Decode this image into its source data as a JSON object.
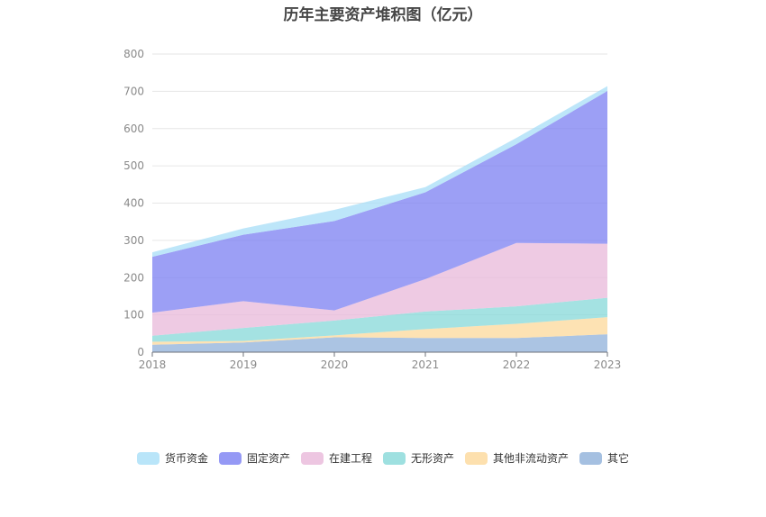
{
  "chart_data": {
    "type": "area",
    "stacked": true,
    "title": "历年主要资产堆积图（亿元）",
    "x": [
      "2018",
      "2019",
      "2020",
      "2021",
      "2022",
      "2023"
    ],
    "ylim": [
      0,
      800
    ],
    "yticks": [
      "0",
      "100",
      "200",
      "300",
      "400",
      "500",
      "600",
      "700",
      "800"
    ],
    "grid": true,
    "legend_position": "bottom",
    "series": [
      {
        "name": "其它",
        "color": "#8fb0d9",
        "values": [
          20,
          26,
          40,
          38,
          38,
          48
        ]
      },
      {
        "name": "其他非流动资产",
        "color": "#fcd89a",
        "values": [
          8,
          4,
          5,
          24,
          38,
          46
        ]
      },
      {
        "name": "无形资产",
        "color": "#86d8d8",
        "values": [
          16,
          35,
          40,
          47,
          47,
          52
        ]
      },
      {
        "name": "在建工程",
        "color": "#e8b8da",
        "values": [
          62,
          72,
          27,
          87,
          170,
          145
        ]
      },
      {
        "name": "固定资产",
        "color": "#7b7ff2",
        "values": [
          150,
          178,
          240,
          233,
          265,
          410
        ]
      },
      {
        "name": "货币资金",
        "color": "#a7def7",
        "values": [
          12,
          17,
          30,
          14,
          17,
          13
        ]
      }
    ],
    "legend_order": [
      "货币资金",
      "固定资产",
      "在建工程",
      "无形资产",
      "其他非流动资产",
      "其它"
    ]
  }
}
